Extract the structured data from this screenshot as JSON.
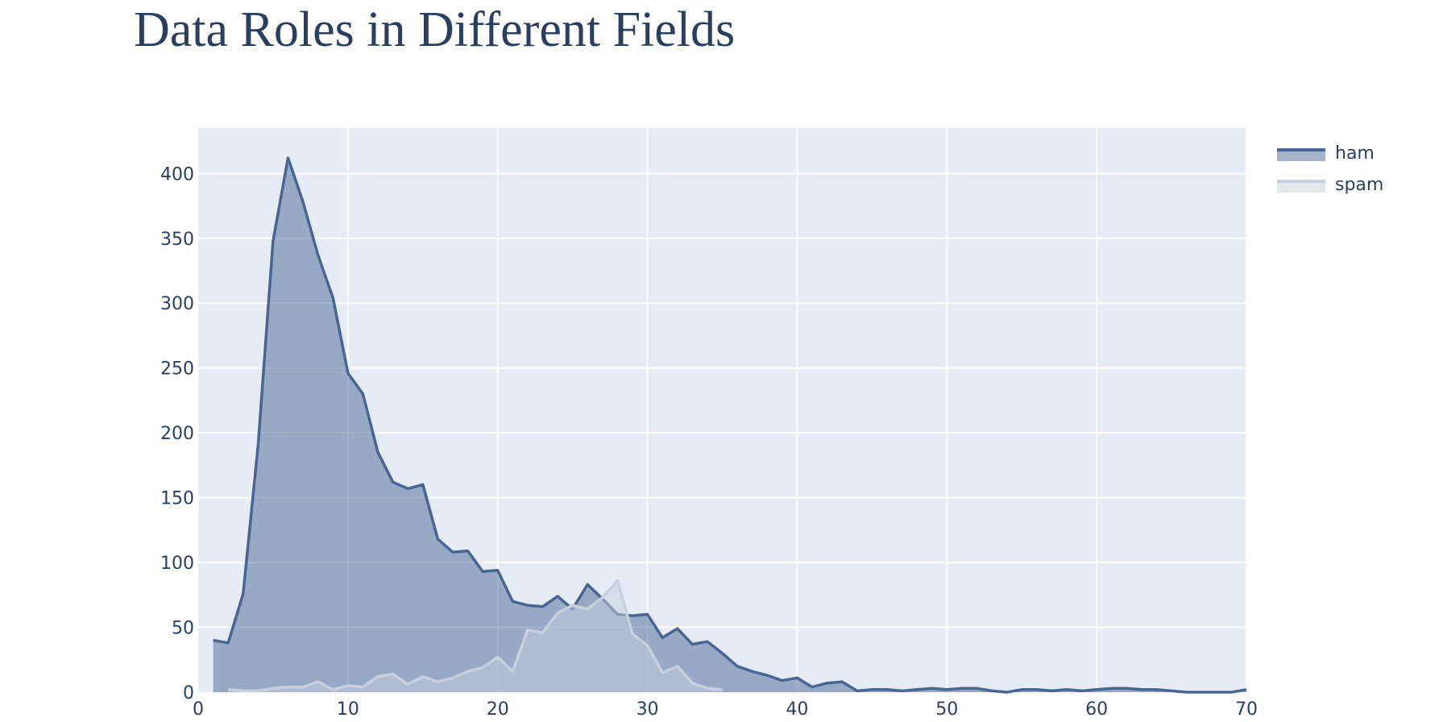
{
  "chart_data": {
    "type": "area",
    "title": "Data Roles in Different Fields",
    "xlabel": "",
    "ylabel": "",
    "xlim": [
      0,
      70
    ],
    "ylim": [
      0,
      435
    ],
    "x_ticks": [
      0,
      10,
      20,
      30,
      40,
      50,
      60,
      70
    ],
    "y_ticks": [
      0,
      50,
      100,
      150,
      200,
      250,
      300,
      350,
      400
    ],
    "grid": true,
    "legend_position": "top-right",
    "colors": {
      "plot_bg": "#E5ECF6",
      "grid": "#ffffff",
      "text": "#2a3f5f",
      "ham_line": "#4a6594",
      "ham_fill": "rgba(74,101,148,0.5)",
      "spam_line": "#c8d0de",
      "spam_fill": "rgba(200,208,222,0.5)"
    },
    "series": [
      {
        "name": "ham",
        "x": [
          1,
          2,
          3,
          4,
          5,
          6,
          7,
          8,
          9,
          10,
          11,
          12,
          13,
          14,
          15,
          16,
          17,
          18,
          19,
          20,
          21,
          22,
          23,
          24,
          25,
          26,
          27,
          28,
          29,
          30,
          31,
          32,
          33,
          34,
          35,
          36,
          37,
          38,
          39,
          40,
          41,
          42,
          43,
          44,
          45,
          46,
          47,
          48,
          49,
          50,
          51,
          52,
          53,
          54,
          55,
          56,
          57,
          58,
          59,
          60,
          61,
          62,
          63,
          64,
          65,
          66,
          67,
          68,
          69,
          70
        ],
        "values": [
          40,
          38,
          76,
          190,
          348,
          412,
          378,
          337,
          304,
          246,
          230,
          185,
          162,
          157,
          160,
          118,
          108,
          109,
          93,
          94,
          70,
          67,
          66,
          74,
          64,
          83,
          72,
          60,
          59,
          60,
          42,
          49,
          37,
          39,
          30,
          20,
          16,
          13,
          9,
          11,
          4,
          7,
          8,
          1,
          2,
          2,
          1,
          2,
          3,
          2,
          3,
          3,
          1,
          0,
          2,
          2,
          1,
          2,
          1,
          2,
          3,
          3,
          2,
          2,
          1,
          0,
          0,
          0,
          0,
          2
        ]
      },
      {
        "name": "spam",
        "x": [
          2,
          3,
          4,
          5,
          6,
          7,
          8,
          9,
          10,
          11,
          12,
          13,
          14,
          15,
          16,
          17,
          18,
          19,
          20,
          21,
          22,
          23,
          24,
          25,
          26,
          27,
          28,
          29,
          30,
          31,
          32,
          33,
          34,
          35
        ],
        "values": [
          2,
          1,
          1,
          3,
          4,
          4,
          8,
          2,
          5,
          4,
          12,
          14,
          6,
          12,
          8,
          11,
          16,
          19,
          27,
          16,
          48,
          46,
          61,
          67,
          64,
          73,
          86,
          45,
          36,
          15,
          20,
          7,
          3,
          2
        ]
      }
    ]
  }
}
